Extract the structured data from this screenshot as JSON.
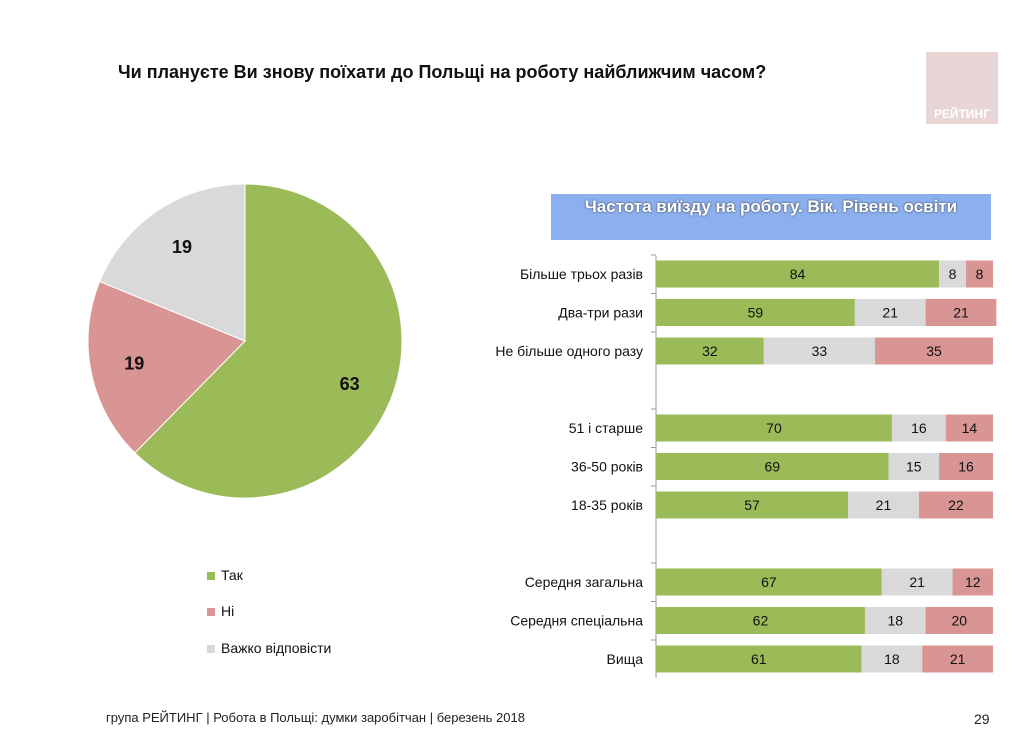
{
  "title": "Чи плануєте Ви знову поїхати до Польщі на роботу найближчим часом?",
  "logo_text": "РЕЙТИНГ",
  "footer": "група РЕЙТИНГ  | Робота в Польщі: думки заробітчан  | березень 2018",
  "page_number": "29",
  "colors": {
    "yes": "#9bbb59",
    "no": "#d99594",
    "hard": "#d9d9d9"
  },
  "chart_data": [
    {
      "type": "pie",
      "legend": [
        {
          "key": "yes",
          "label": "Так"
        },
        {
          "key": "no",
          "label": "Ні"
        },
        {
          "key": "hard",
          "label": "Важко відповісти"
        }
      ],
      "slices": [
        {
          "key": "yes",
          "value": 63
        },
        {
          "key": "no",
          "value": 19
        },
        {
          "key": "hard",
          "value": 19
        }
      ],
      "legend_position": "bottom-left"
    },
    {
      "type": "bar",
      "stacked": true,
      "orientation": "horizontal",
      "title": "Частота виїзду на роботу. Вік. Рівень освіти",
      "series_order": [
        "yes",
        "hard",
        "no"
      ],
      "groups": [
        [
          {
            "label": "Більше трьох разів",
            "values": [
              84,
              8,
              8
            ]
          },
          {
            "label": "Два-три рази",
            "values": [
              59,
              21,
              21
            ]
          },
          {
            "label": "Не більше одного разу",
            "values": [
              32,
              33,
              35
            ]
          }
        ],
        [
          {
            "label": "51 і старше",
            "values": [
              70,
              16,
              14
            ]
          },
          {
            "label": "36-50 років",
            "values": [
              69,
              15,
              16
            ]
          },
          {
            "label": "18-35 років",
            "values": [
              57,
              21,
              22
            ]
          }
        ],
        [
          {
            "label": "Середня загальна",
            "values": [
              67,
              21,
              12
            ]
          },
          {
            "label": "Середня спеціальна",
            "values": [
              62,
              18,
              20
            ]
          },
          {
            "label": "Вища",
            "values": [
              61,
              18,
              21
            ]
          }
        ]
      ]
    }
  ]
}
